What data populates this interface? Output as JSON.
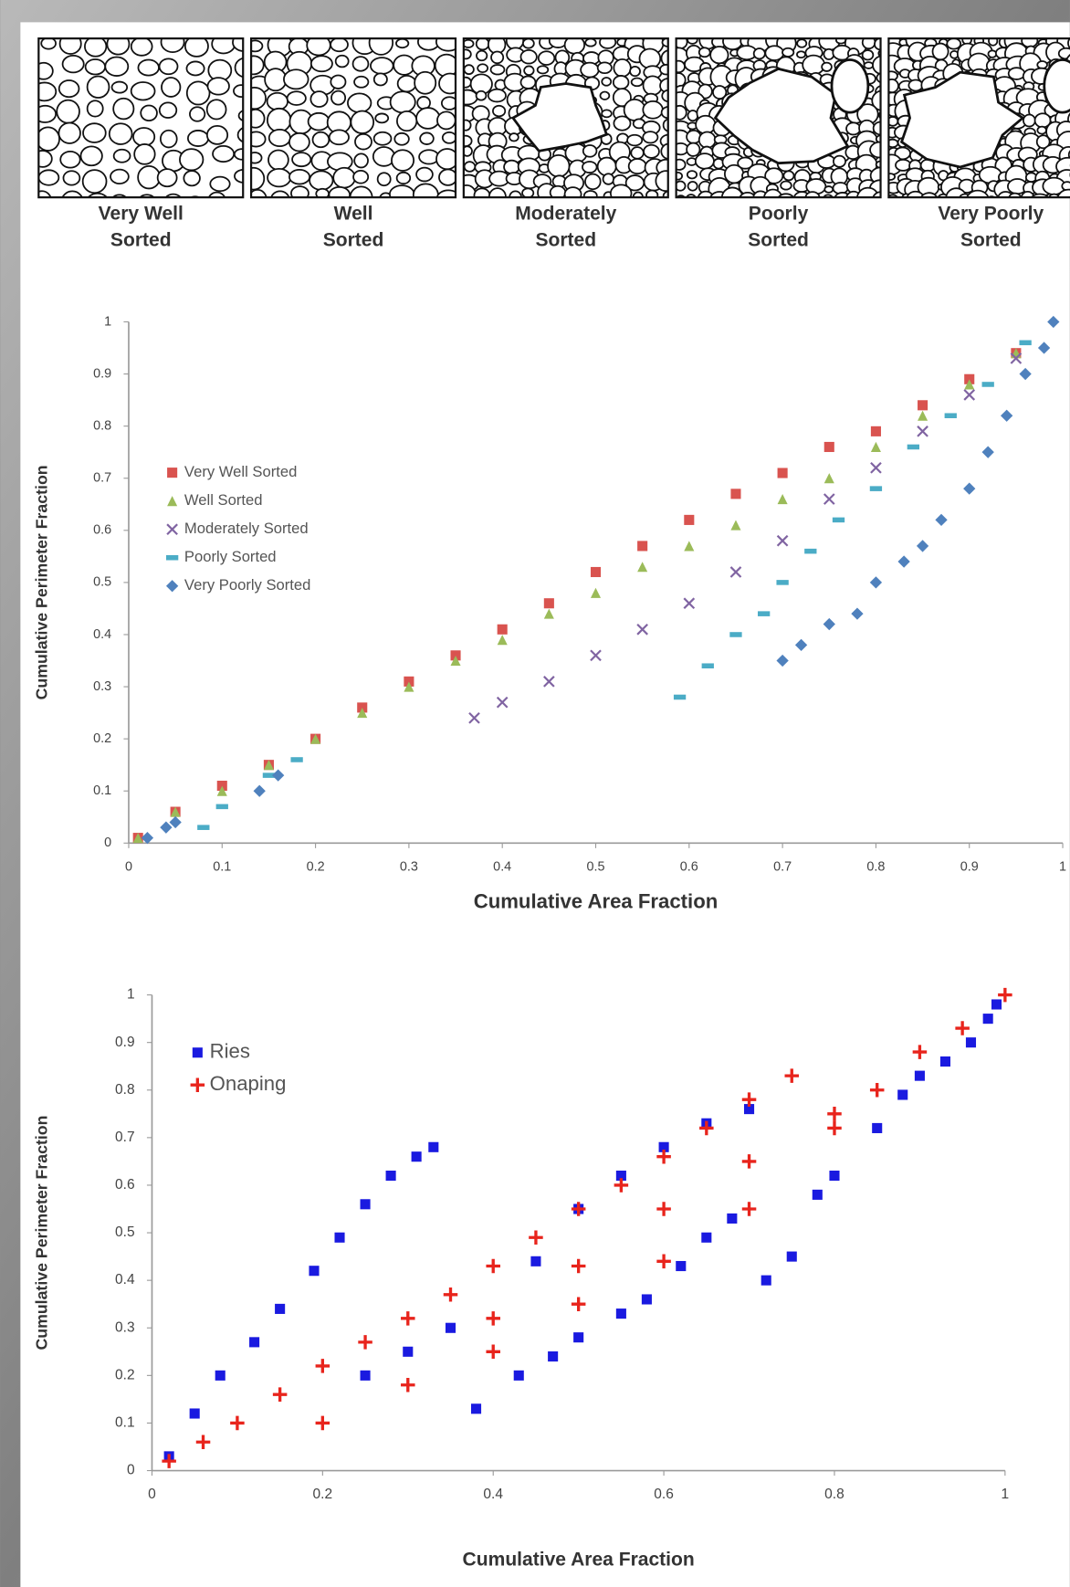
{
  "sorting_panels": [
    [
      "Very Well",
      "Sorted"
    ],
    [
      "Well",
      "Sorted"
    ],
    [
      "Moderately",
      "Sorted"
    ],
    [
      "Poorly",
      "Sorted"
    ],
    [
      "Very Poorly",
      "Sorted"
    ]
  ],
  "chart_data": [
    {
      "type": "scatter",
      "xlabel": "Cumulative Area Fraction",
      "ylabel": "Cumulative Perimeter Fraction",
      "xlim": [
        0,
        1
      ],
      "ylim": [
        0,
        1
      ],
      "xticks": [
        0,
        0.1,
        0.2,
        0.3,
        0.4,
        0.5,
        0.6,
        0.7,
        0.8,
        0.9,
        1
      ],
      "yticks": [
        0,
        0.1,
        0.2,
        0.3,
        0.4,
        0.5,
        0.6,
        0.7,
        0.8,
        0.9,
        1
      ],
      "legend": "upper left",
      "series": [
        {
          "name": "Very Well Sorted",
          "color": "#d9534f",
          "marker": "square",
          "x": [
            0.01,
            0.05,
            0.1,
            0.15,
            0.2,
            0.25,
            0.3,
            0.35,
            0.4,
            0.45,
            0.5,
            0.55,
            0.6,
            0.65,
            0.7,
            0.75,
            0.8,
            0.85,
            0.9,
            0.95
          ],
          "y": [
            0.01,
            0.06,
            0.11,
            0.15,
            0.2,
            0.26,
            0.31,
            0.36,
            0.41,
            0.46,
            0.52,
            0.57,
            0.62,
            0.67,
            0.71,
            0.76,
            0.79,
            0.84,
            0.89,
            0.94
          ]
        },
        {
          "name": "Well Sorted",
          "color": "#9bbb59",
          "marker": "triangle",
          "x": [
            0.01,
            0.05,
            0.1,
            0.15,
            0.2,
            0.25,
            0.3,
            0.35,
            0.4,
            0.45,
            0.5,
            0.55,
            0.6,
            0.65,
            0.7,
            0.75,
            0.8,
            0.85,
            0.9,
            0.95
          ],
          "y": [
            0.01,
            0.06,
            0.1,
            0.15,
            0.2,
            0.25,
            0.3,
            0.35,
            0.39,
            0.44,
            0.48,
            0.53,
            0.57,
            0.61,
            0.66,
            0.7,
            0.76,
            0.82,
            0.88,
            0.94
          ]
        },
        {
          "name": "Moderately Sorted",
          "color": "#8064a2",
          "marker": "x",
          "x": [
            0.37,
            0.4,
            0.45,
            0.5,
            0.55,
            0.6,
            0.65,
            0.7,
            0.75,
            0.8,
            0.85,
            0.9,
            0.95
          ],
          "y": [
            0.24,
            0.27,
            0.31,
            0.36,
            0.41,
            0.46,
            0.52,
            0.58,
            0.66,
            0.72,
            0.79,
            0.86,
            0.93
          ]
        },
        {
          "name": "Poorly Sorted",
          "color": "#4bacc6",
          "marker": "dash",
          "x": [
            0.08,
            0.1,
            0.15,
            0.18,
            0.59,
            0.62,
            0.65,
            0.68,
            0.7,
            0.73,
            0.76,
            0.8,
            0.84,
            0.88,
            0.92,
            0.96
          ],
          "y": [
            0.03,
            0.07,
            0.13,
            0.16,
            0.28,
            0.34,
            0.4,
            0.44,
            0.5,
            0.56,
            0.62,
            0.68,
            0.76,
            0.82,
            0.88,
            0.96
          ]
        },
        {
          "name": "Very Poorly Sorted",
          "color": "#4f81bd",
          "marker": "diamond",
          "x": [
            0.02,
            0.04,
            0.05,
            0.14,
            0.16,
            0.7,
            0.72,
            0.75,
            0.78,
            0.8,
            0.83,
            0.85,
            0.87,
            0.9,
            0.92,
            0.94,
            0.96,
            0.98,
            0.99
          ],
          "y": [
            0.01,
            0.03,
            0.04,
            0.1,
            0.13,
            0.35,
            0.38,
            0.42,
            0.44,
            0.5,
            0.54,
            0.57,
            0.62,
            0.68,
            0.75,
            0.82,
            0.9,
            0.95,
            1
          ]
        }
      ]
    },
    {
      "type": "scatter",
      "xlabel": "Cumulative Area Fraction",
      "ylabel": "Cumulative Perimeter Fraction",
      "xlim": [
        0,
        1
      ],
      "ylim": [
        0,
        1
      ],
      "xticks": [
        0,
        0.2,
        0.4,
        0.6,
        0.8,
        1
      ],
      "yticks": [
        0,
        0.1,
        0.2,
        0.3,
        0.4,
        0.5,
        0.6,
        0.7,
        0.8,
        0.9,
        1
      ],
      "legend": "upper left",
      "series": [
        {
          "name": "Ries",
          "color": "#1a1ae0",
          "marker": "square",
          "x": [
            0.02,
            0.05,
            0.08,
            0.12,
            0.15,
            0.19,
            0.22,
            0.25,
            0.28,
            0.31,
            0.33,
            0.38,
            0.43,
            0.47,
            0.5,
            0.55,
            0.58,
            0.62,
            0.65,
            0.68,
            0.72,
            0.75,
            0.78,
            0.8,
            0.85,
            0.88,
            0.9,
            0.93,
            0.96,
            0.98,
            0.99,
            0.45,
            0.5,
            0.55,
            0.6,
            0.65,
            0.7,
            0.3,
            0.35,
            0.25
          ],
          "y": [
            0.03,
            0.12,
            0.2,
            0.27,
            0.34,
            0.42,
            0.49,
            0.56,
            0.62,
            0.66,
            0.68,
            0.13,
            0.2,
            0.24,
            0.28,
            0.33,
            0.36,
            0.43,
            0.49,
            0.53,
            0.4,
            0.45,
            0.58,
            0.62,
            0.72,
            0.79,
            0.83,
            0.86,
            0.9,
            0.95,
            0.98,
            0.44,
            0.55,
            0.62,
            0.68,
            0.73,
            0.76,
            0.25,
            0.3,
            0.2
          ]
        },
        {
          "name": "Onaping",
          "color": "#e8241c",
          "marker": "plus",
          "x": [
            0.02,
            0.06,
            0.1,
            0.15,
            0.2,
            0.25,
            0.3,
            0.35,
            0.4,
            0.45,
            0.5,
            0.55,
            0.6,
            0.65,
            0.7,
            0.75,
            0.2,
            0.3,
            0.4,
            0.5,
            0.6,
            0.7,
            0.8,
            0.85,
            0.9,
            0.95,
            1,
            0.4,
            0.5,
            0.6,
            0.7,
            0.8
          ],
          "y": [
            0.02,
            0.06,
            0.1,
            0.16,
            0.22,
            0.27,
            0.32,
            0.37,
            0.43,
            0.49,
            0.55,
            0.6,
            0.66,
            0.72,
            0.78,
            0.83,
            0.1,
            0.18,
            0.25,
            0.35,
            0.44,
            0.55,
            0.72,
            0.8,
            0.88,
            0.93,
            1,
            0.32,
            0.43,
            0.55,
            0.65,
            0.75
          ]
        }
      ]
    }
  ]
}
